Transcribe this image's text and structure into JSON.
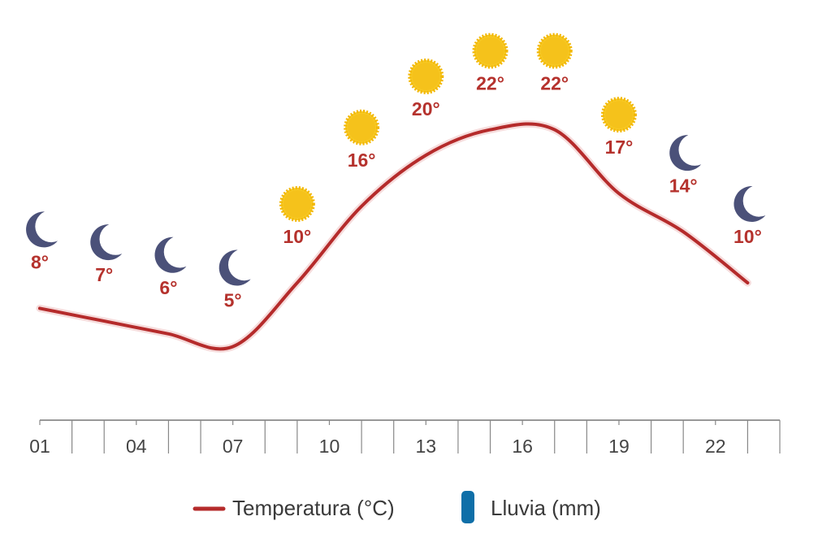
{
  "chart_data": {
    "type": "line",
    "x": [
      1,
      3,
      5,
      7,
      9,
      11,
      13,
      15,
      17,
      19,
      21,
      23
    ],
    "xlim": [
      1,
      24
    ],
    "xticks": [
      {
        "value": 1,
        "label": "01"
      },
      {
        "value": 4,
        "label": "04"
      },
      {
        "value": 7,
        "label": "07"
      },
      {
        "value": 10,
        "label": "10"
      },
      {
        "value": 13,
        "label": "13"
      },
      {
        "value": 16,
        "label": "16"
      },
      {
        "value": 19,
        "label": "19"
      },
      {
        "value": 22,
        "label": "22"
      }
    ],
    "xminorticks": [
      2,
      3,
      5,
      6,
      8,
      9,
      11,
      12,
      14,
      15,
      17,
      18,
      20,
      21,
      23,
      24
    ],
    "ylim": [
      0,
      30
    ],
    "conditions": [
      "moon",
      "moon",
      "moon",
      "moon",
      "sun",
      "sun",
      "sun",
      "sun",
      "sun",
      "sun",
      "moon",
      "moon"
    ],
    "series": [
      {
        "name": "Temperatura (°C)",
        "color": "#b52b2b",
        "values": [
          8,
          7,
          6,
          5,
          10,
          16,
          20,
          22,
          22,
          17,
          14,
          10
        ],
        "value_labels": [
          "8°",
          "7°",
          "6°",
          "5°",
          "10°",
          "16°",
          "20°",
          "22°",
          "22°",
          "17°",
          "14°",
          "10°"
        ]
      },
      {
        "name": "Lluvia (mm)",
        "color": "#0f6fa8",
        "values": [
          0,
          0,
          0,
          0,
          0,
          0,
          0,
          0,
          0,
          0,
          0,
          0
        ]
      }
    ]
  }
}
